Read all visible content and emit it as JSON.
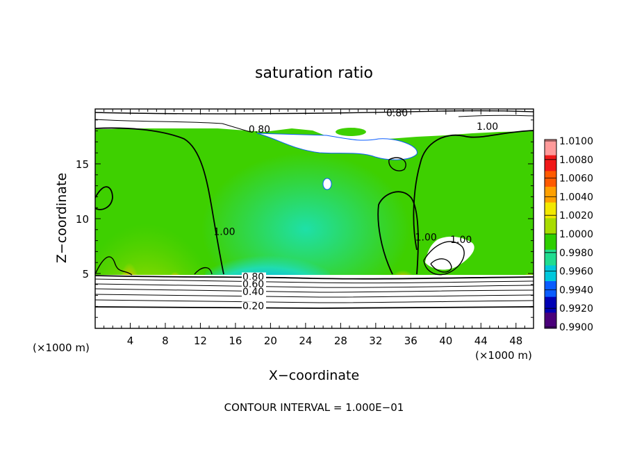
{
  "chart_data": {
    "type": "heatmap",
    "title": "saturation ratio",
    "xlabel": "X−coordinate",
    "ylabel": "Z−coordinate",
    "x_unit_label": "(×1000 m)",
    "y_unit_label": "(×1000 m)",
    "xlim": [
      0,
      50
    ],
    "ylim": [
      0,
      20
    ],
    "x_ticks": [
      4,
      8,
      12,
      16,
      20,
      24,
      28,
      32,
      36,
      40,
      44,
      48
    ],
    "y_ticks": [
      5,
      10,
      15
    ],
    "colorbar": {
      "labels": [
        "1.0100",
        "1.0080",
        "1.0060",
        "1.0040",
        "1.0020",
        "1.0000",
        "0.9980",
        "0.9960",
        "0.9940",
        "0.9920",
        "0.9900"
      ],
      "colors": [
        "#ff9a9a",
        "#f01818",
        "#ff5a00",
        "#ffa000",
        "#f2e800",
        "#a8dc00",
        "#2ece00",
        "#20dc90",
        "#00c8dc",
        "#0a5cff",
        "#0000b4",
        "#4a007a"
      ]
    },
    "contour_labels": [
      {
        "text": "0.80",
        "x": 33.2,
        "z": 19.35
      },
      {
        "text": "0.80",
        "x": 17.5,
        "z": 17.85
      },
      {
        "text": "1.00",
        "x": 43.5,
        "z": 18.1
      },
      {
        "text": "1.00",
        "x": 13.5,
        "z": 8.5
      },
      {
        "text": "1.00",
        "x": 36.5,
        "z": 8.0
      },
      {
        "text": "1.00",
        "x": 40.5,
        "z": 7.8
      },
      {
        "text": "0.80",
        "x": 16.8,
        "z": 4.4
      },
      {
        "text": "0.60",
        "x": 16.8,
        "z": 3.75
      },
      {
        "text": "0.40",
        "x": 16.8,
        "z": 3.05
      },
      {
        "text": "0.20",
        "x": 16.8,
        "z": 1.75
      }
    ],
    "footnote": "CONTOUR INTERVAL = 1.000E−01"
  }
}
